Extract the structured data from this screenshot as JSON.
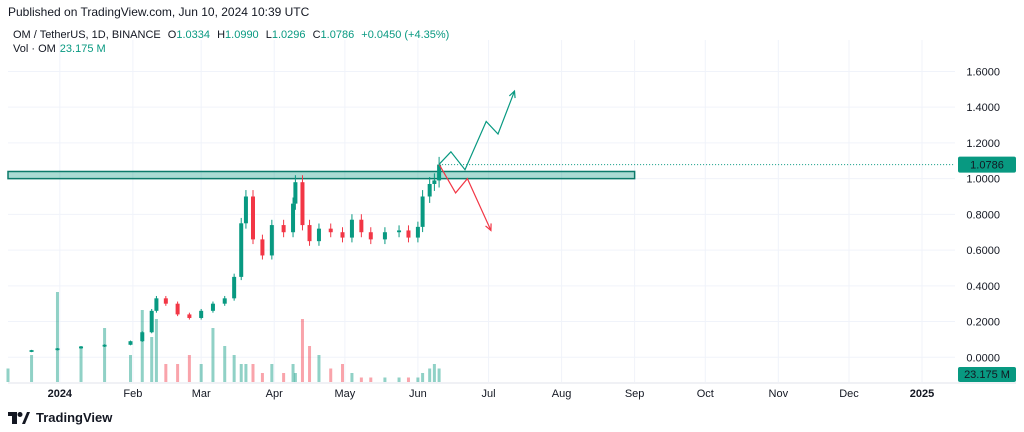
{
  "header": {
    "published": "Published on TradingView.com, Jun 10, 2024 10:39 UTC"
  },
  "legend": {
    "symbol": "OM / TetherUS, 1D, BINANCE",
    "o_label": "O",
    "o_value": "1.0334",
    "h_label": "H",
    "h_value": "1.0990",
    "l_label": "L",
    "l_value": "1.0296",
    "c_label": "C",
    "c_value": "1.0786",
    "change": "+0.0450 (+4.35%)",
    "vol_label": "Vol · OM",
    "vol_value": "23.175 M"
  },
  "footer": {
    "brand": "TradingView",
    "logo_icon": "tradingview-logo-icon"
  },
  "colors": {
    "up": "#089981",
    "down": "#f23645",
    "zone": "#089981",
    "grid": "#f0f3fa"
  },
  "chart_data": {
    "type": "candlestick",
    "title": "",
    "price_axis": {
      "ticks": [
        "1.6000",
        "1.4000",
        "1.2000",
        "1.0000",
        "0.8000",
        "0.6000",
        "0.4000",
        "0.2000",
        "0.0000"
      ],
      "tick_values": [
        1.6,
        1.4,
        1.2,
        1.0,
        0.8,
        0.6,
        0.4,
        0.2,
        0.0
      ],
      "ylim": [
        -0.06,
        1.72
      ],
      "last_price_label": "1.0786",
      "last_price": 1.0786,
      "volume_label": "23.175 M"
    },
    "time_axis": {
      "labels": [
        "2024",
        "Feb",
        "Mar",
        "Apr",
        "May",
        "Jun",
        "Jul",
        "Aug",
        "Sep",
        "Oct",
        "Nov",
        "Dec",
        "2025"
      ],
      "label_dates": [
        "2024-01-01",
        "2024-02-01",
        "2024-03-01",
        "2024-04-01",
        "2024-05-01",
        "2024-06-01",
        "2024-07-01",
        "2024-08-01",
        "2024-09-01",
        "2024-10-01",
        "2024-11-01",
        "2024-12-01",
        "2025-01-01"
      ],
      "start": "2023-12-10",
      "end": "2025-01-15"
    },
    "resistance_zone": {
      "low": 1.0,
      "high": 1.04,
      "from": "2023-12-10",
      "to": "2024-09-01"
    },
    "bull_path": [
      [
        "2024-06-10",
        1.08
      ],
      [
        "2024-06-15",
        1.15
      ],
      [
        "2024-06-21",
        1.05
      ],
      [
        "2024-06-30",
        1.32
      ],
      [
        "2024-07-05",
        1.25
      ],
      [
        "2024-07-12",
        1.49
      ]
    ],
    "bear_path": [
      [
        "2024-06-10",
        1.08
      ],
      [
        "2024-06-17",
        0.92
      ],
      [
        "2024-06-22",
        1.0
      ],
      [
        "2024-07-02",
        0.71
      ]
    ],
    "close_series": [
      [
        "2023-12-10",
        0.03
      ],
      [
        "2023-12-20",
        0.04
      ],
      [
        "2023-12-31",
        0.05
      ],
      [
        "2024-01-10",
        0.06
      ],
      [
        "2024-01-20",
        0.07
      ],
      [
        "2024-01-31",
        0.09
      ],
      [
        "2024-02-05",
        0.14
      ],
      [
        "2024-02-09",
        0.26
      ],
      [
        "2024-02-11",
        0.33
      ],
      [
        "2024-02-15",
        0.3
      ],
      [
        "2024-02-20",
        0.24
      ],
      [
        "2024-02-25",
        0.22
      ],
      [
        "2024-03-01",
        0.26
      ],
      [
        "2024-03-06",
        0.3
      ],
      [
        "2024-03-11",
        0.33
      ],
      [
        "2024-03-15",
        0.45
      ],
      [
        "2024-03-18",
        0.75
      ],
      [
        "2024-03-20",
        0.9
      ],
      [
        "2024-03-23",
        0.66
      ],
      [
        "2024-03-27",
        0.57
      ],
      [
        "2024-03-31",
        0.74
      ],
      [
        "2024-04-05",
        0.7
      ],
      [
        "2024-04-09",
        0.86
      ],
      [
        "2024-04-10",
        0.98
      ],
      [
        "2024-04-13",
        0.74
      ],
      [
        "2024-04-16",
        0.65
      ],
      [
        "2024-04-20",
        0.72
      ],
      [
        "2024-04-25",
        0.7
      ],
      [
        "2024-04-30",
        0.67
      ],
      [
        "2024-05-04",
        0.77
      ],
      [
        "2024-05-08",
        0.7
      ],
      [
        "2024-05-12",
        0.66
      ],
      [
        "2024-05-18",
        0.7
      ],
      [
        "2024-05-24",
        0.71
      ],
      [
        "2024-05-28",
        0.67
      ],
      [
        "2024-06-01",
        0.73
      ],
      [
        "2024-06-03",
        0.9
      ],
      [
        "2024-06-06",
        0.97
      ],
      [
        "2024-06-08",
        0.99
      ],
      [
        "2024-06-10",
        1.0786
      ]
    ],
    "volume_relative": [
      0.15,
      0.3,
      1.0,
      0.4,
      0.6,
      0.3,
      0.8,
      0.5,
      0.7,
      0.2,
      0.2,
      0.3,
      0.2,
      0.6,
      0.4,
      0.3,
      0.2,
      0.2,
      0.2,
      0.1,
      0.2,
      0.1,
      0.2,
      0.1,
      0.7,
      0.4,
      0.3,
      0.15,
      0.2,
      0.1,
      0.05,
      0.05,
      0.05,
      0.05,
      0.05,
      0.05,
      0.1,
      0.15,
      0.2,
      0.15
    ]
  }
}
